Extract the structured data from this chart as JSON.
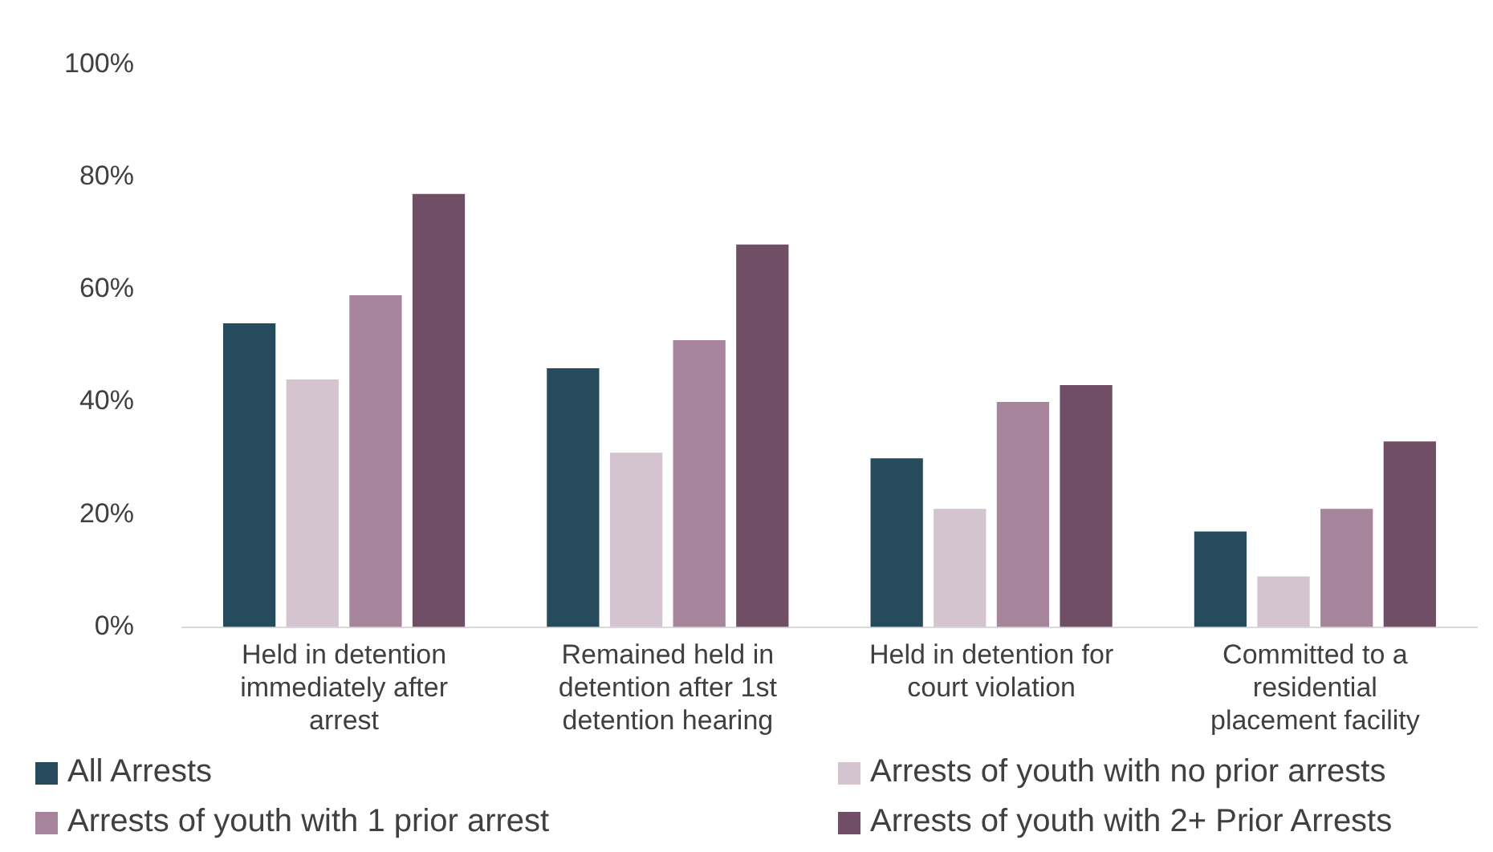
{
  "chart_data": {
    "type": "bar",
    "categories": [
      [
        "Held in detention",
        "immediately after",
        "arrest"
      ],
      [
        "Remained held in",
        "detention after 1st",
        "detention hearing"
      ],
      [
        "Held in detention for",
        "court violation"
      ],
      [
        "Committed to a",
        "residential",
        "placement facility"
      ]
    ],
    "series": [
      {
        "name": "All Arrests",
        "color": "#264b5c",
        "values": [
          54,
          46,
          30,
          17
        ]
      },
      {
        "name": "Arrests of youth with no prior arrests",
        "color": "#d4c4d0",
        "values": [
          44,
          31,
          21,
          9
        ]
      },
      {
        "name": "Arrests of youth with 1 prior arrest",
        "color": "#a7859d",
        "values": [
          59,
          51,
          40,
          21
        ]
      },
      {
        "name": "Arrests of youth with 2+ Prior Arrests",
        "color": "#704f66",
        "values": [
          77,
          68,
          43,
          33
        ]
      }
    ],
    "ylim": [
      0,
      100
    ],
    "yticks": [
      {
        "value": 0,
        "label": "0%"
      },
      {
        "value": 20,
        "label": "20%"
      },
      {
        "value": 40,
        "label": "40%"
      },
      {
        "value": 60,
        "label": "60%"
      },
      {
        "value": 80,
        "label": "80%"
      },
      {
        "value": 100,
        "label": "100%"
      }
    ],
    "grid": false,
    "legend": "bottom"
  }
}
